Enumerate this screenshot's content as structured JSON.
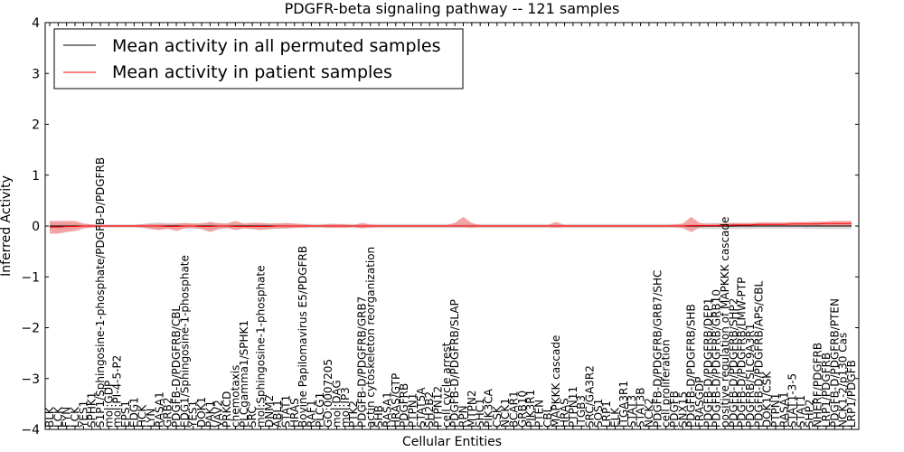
{
  "chart_data": {
    "type": "line",
    "title": "PDGFR-beta signaling pathway -- 121 samples",
    "xlabel": "Cellular Entities",
    "ylabel": "Inferred Activity",
    "ylim": [
      -4,
      4
    ],
    "yticks": [
      -4,
      -3,
      -2,
      -1,
      0,
      1,
      2,
      3,
      4
    ],
    "ytick_labels": [
      "−4",
      "−3",
      "−2",
      "−1",
      "0",
      "1",
      "2",
      "3",
      "4"
    ],
    "grid": false,
    "legend_position": "upper-left",
    "legend": [
      {
        "label": "Mean activity in all permuted samples",
        "color": "#000000"
      },
      {
        "label": "Mean activity in patient samples",
        "color": "#ff0000"
      }
    ],
    "categories": [
      "BLK",
      "LCK",
      "FYN",
      "LCK",
      "YES1",
      "SPHK1",
      "S1P1/Sphingosine-1-phosphate/PDGFB-D/PDGFRB",
      "mol:GDP",
      "mol:PI-4-5-P2",
      "EPS1",
      "EDG1",
      "HCK",
      "LYN",
      "RASA1",
      "GRB2",
      "PDGFB-D/PDGFRB/CBL",
      "EDG1/Sphingosine-1-phosphate",
      "YES1",
      "DOK1",
      "PAK1",
      "VAV2",
      "PRKCD",
      "chemotaxis",
      "PLCgamma1/SPHK1",
      "SRC",
      "mol:Sphingosine-1-phosphate",
      "DNM2",
      "ABL1",
      "STAT1",
      "HRAS",
      "Bovine Papilomavirus E5/PDGFRB",
      "RAF1",
      "PLCG1",
      "GO:0007205",
      "mol:DAG",
      "mol:IP3",
      "PTK2",
      "PDGFB-D/PDGFRB/GRB7",
      "actin cytoskeleton reorganization",
      "SHB",
      "RASA1",
      "HRAS/GTP",
      "PDGFRB",
      "PTPN1",
      "STAT5A",
      "SH2B2",
      "PTPN12",
      "cell cycle arrest",
      "PDGFB-D/PDGFRB/SLAP",
      "RPN",
      "MTPN2",
      "SHC1",
      "PIK3CA",
      "CSK",
      "NCK1",
      "BCAR1",
      "GRB10",
      "PIK3R1",
      "PTEN",
      "CBL",
      "MAPKKK cascade",
      "HRAS",
      "PTPN11",
      "ITGB3",
      "SRC/GA3R2",
      "SOS1",
      "LRP1",
      "ELK",
      "ITGA3R1",
      "STAT3",
      "STAT3B",
      "NCK2",
      "PDGFB-D/PDGFRB/GRB7/SHC",
      "cell proliferation",
      "PDGFB",
      "SNX15",
      "PDGFB-D/PDGFRB/SHB",
      "FRASGDP",
      "PDGFB-D/PDGFRB/DEP1",
      "PDGFB-D/PDGFRB/GRB10",
      "positive regulation of MAPKKK cascade",
      "PDGFB-D/PDGFRB/SHP2",
      "PDGFB-D/PDGFRB/LMW-PTP",
      "PDGFRB/SLC9A3R1",
      "PDGFB-D/PDGFRB/APS/CBL",
      "DOK1/CSK",
      "PTPN1",
      "RASA1",
      "STAT1-3-5",
      "STAT1",
      "SHP2",
      "NHERF/PDGFRB",
      "LRP1/PDGFRB",
      "PDGFB-D/PDGFRB/PTEN",
      "NCK1-2/p130 Cas",
      "LRP1/PDGFB"
    ],
    "series": [
      {
        "name": "Mean activity in all permuted samples",
        "values": [
          0.0,
          0.0,
          0.0,
          0.0,
          0.0,
          0.0,
          0.0,
          0.0,
          0.0,
          0.0,
          0.0,
          0.0,
          0.0,
          0.0,
          0.0,
          0.0,
          0.0,
          0.0,
          0.0,
          0.0,
          0.0,
          0.0,
          0.0,
          0.0,
          0.0,
          0.0,
          0.0,
          0.0,
          0.0,
          0.0,
          0.0,
          0.0,
          0.0,
          0.0,
          0.0,
          0.0,
          0.0,
          0.0,
          0.0,
          0.0,
          0.0,
          0.0,
          0.0,
          0.0,
          0.0,
          0.0,
          0.0,
          0.0,
          0.0,
          0.0,
          0.0,
          0.0,
          0.0,
          0.0,
          0.0,
          0.0,
          0.0,
          0.0,
          0.0,
          0.0,
          0.0,
          0.0,
          0.0,
          0.0,
          0.0,
          0.0,
          0.0,
          0.0,
          0.0,
          0.0,
          0.0,
          0.0,
          0.0,
          0.0,
          0.0,
          0.0,
          0.0,
          0.0,
          0.0,
          0.0,
          0.0,
          0.0,
          0.0,
          0.0,
          0.0,
          0.0,
          0.0,
          0.0,
          0.0,
          0.0,
          0.0,
          0.0,
          0.0,
          0.0,
          0.0,
          0.0
        ],
        "lower": [
          -0.06,
          -0.06,
          -0.06,
          -0.05,
          -0.04,
          -0.03,
          -0.03,
          -0.03,
          -0.03,
          -0.03,
          -0.03,
          -0.04,
          -0.06,
          -0.07,
          -0.06,
          -0.05,
          -0.05,
          -0.05,
          -0.06,
          -0.07,
          -0.06,
          -0.05,
          -0.05,
          -0.05,
          -0.06,
          -0.05,
          -0.05,
          -0.05,
          -0.05,
          -0.04,
          -0.04,
          -0.04,
          -0.04,
          -0.04,
          -0.04,
          -0.04,
          -0.04,
          -0.04,
          -0.04,
          -0.04,
          -0.04,
          -0.04,
          -0.04,
          -0.04,
          -0.04,
          -0.04,
          -0.04,
          -0.04,
          -0.04,
          -0.04,
          -0.04,
          -0.04,
          -0.04,
          -0.04,
          -0.04,
          -0.04,
          -0.04,
          -0.04,
          -0.04,
          -0.04,
          -0.04,
          -0.04,
          -0.04,
          -0.04,
          -0.04,
          -0.04,
          -0.04,
          -0.04,
          -0.04,
          -0.04,
          -0.04,
          -0.04,
          -0.04,
          -0.04,
          -0.04,
          -0.04,
          -0.04,
          -0.05,
          -0.06,
          -0.06,
          -0.06,
          -0.06,
          -0.06,
          -0.06,
          -0.05,
          -0.05,
          -0.05,
          -0.05,
          -0.05,
          -0.05,
          -0.06,
          -0.06,
          -0.06,
          -0.06,
          -0.06,
          -0.06
        ],
        "upper": [
          0.06,
          0.06,
          0.06,
          0.05,
          0.04,
          0.03,
          0.03,
          0.03,
          0.03,
          0.03,
          0.03,
          0.04,
          0.06,
          0.07,
          0.06,
          0.05,
          0.05,
          0.05,
          0.06,
          0.07,
          0.06,
          0.05,
          0.05,
          0.05,
          0.06,
          0.05,
          0.05,
          0.05,
          0.05,
          0.04,
          0.04,
          0.04,
          0.04,
          0.04,
          0.04,
          0.04,
          0.04,
          0.04,
          0.04,
          0.04,
          0.04,
          0.04,
          0.04,
          0.04,
          0.04,
          0.04,
          0.04,
          0.04,
          0.04,
          0.04,
          0.04,
          0.04,
          0.04,
          0.04,
          0.04,
          0.04,
          0.04,
          0.04,
          0.04,
          0.04,
          0.04,
          0.04,
          0.04,
          0.04,
          0.04,
          0.04,
          0.04,
          0.04,
          0.04,
          0.04,
          0.04,
          0.04,
          0.04,
          0.04,
          0.04,
          0.04,
          0.04,
          0.05,
          0.06,
          0.06,
          0.06,
          0.06,
          0.06,
          0.06,
          0.05,
          0.05,
          0.05,
          0.05,
          0.05,
          0.05,
          0.06,
          0.06,
          0.06,
          0.06,
          0.06,
          0.06
        ],
        "color": "#000000",
        "band_color": "#cccccc"
      },
      {
        "name": "Mean activity in patient samples",
        "values": [
          -0.02,
          -0.02,
          -0.01,
          -0.01,
          0.0,
          0.0,
          0.0,
          0.0,
          0.0,
          0.0,
          0.0,
          0.0,
          0.0,
          0.0,
          -0.01,
          -0.01,
          0.0,
          0.0,
          -0.01,
          -0.01,
          0.0,
          0.0,
          -0.01,
          -0.01,
          -0.01,
          -0.01,
          -0.01,
          0.0,
          0.0,
          0.0,
          0.0,
          0.0,
          0.0,
          0.0,
          0.0,
          0.0,
          0.0,
          0.0,
          0.0,
          0.0,
          0.0,
          0.0,
          0.0,
          0.0,
          0.0,
          0.0,
          0.0,
          0.0,
          0.0,
          0.0,
          0.0,
          0.0,
          0.0,
          0.0,
          0.0,
          0.0,
          0.0,
          0.0,
          0.0,
          0.0,
          0.0,
          0.0,
          0.0,
          0.0,
          0.0,
          0.0,
          0.0,
          0.0,
          0.0,
          0.0,
          0.0,
          0.0,
          0.0,
          0.0,
          0.0,
          0.0,
          0.01,
          0.01,
          0.01,
          0.01,
          0.01,
          0.02,
          0.02,
          0.02,
          0.03,
          0.03,
          0.03,
          0.03,
          0.04,
          0.04,
          0.04,
          0.04,
          0.05,
          0.05,
          0.05,
          0.05
        ],
        "lower": [
          -0.15,
          -0.15,
          -0.12,
          -0.1,
          -0.05,
          -0.03,
          -0.02,
          -0.02,
          -0.02,
          -0.02,
          -0.02,
          -0.03,
          -0.06,
          -0.08,
          -0.05,
          -0.1,
          -0.05,
          -0.04,
          -0.06,
          -0.12,
          -0.06,
          -0.04,
          -0.08,
          -0.05,
          -0.06,
          -0.08,
          -0.06,
          -0.05,
          -0.05,
          -0.04,
          -0.03,
          -0.02,
          -0.02,
          -0.03,
          -0.03,
          -0.03,
          -0.02,
          -0.05,
          -0.03,
          -0.02,
          -0.02,
          -0.02,
          -0.02,
          -0.02,
          -0.02,
          -0.02,
          -0.02,
          -0.02,
          -0.02,
          -0.02,
          -0.03,
          -0.02,
          -0.02,
          -0.02,
          -0.02,
          -0.02,
          -0.02,
          -0.02,
          -0.02,
          -0.02,
          -0.03,
          -0.02,
          -0.02,
          -0.02,
          -0.02,
          -0.02,
          -0.02,
          -0.02,
          -0.02,
          -0.02,
          -0.02,
          -0.02,
          -0.02,
          -0.02,
          -0.02,
          -0.04,
          -0.12,
          -0.03,
          -0.02,
          -0.02,
          -0.02,
          -0.02,
          -0.01,
          -0.01,
          -0.01,
          -0.01,
          -0.01,
          -0.01,
          0.0,
          0.0,
          0.0,
          0.0,
          0.0,
          0.01,
          0.01,
          0.01
        ],
        "upper": [
          0.1,
          0.1,
          0.1,
          0.1,
          0.05,
          0.03,
          0.02,
          0.02,
          0.02,
          0.02,
          0.02,
          0.03,
          0.04,
          0.04,
          0.04,
          0.05,
          0.06,
          0.05,
          0.05,
          0.08,
          0.05,
          0.05,
          0.1,
          0.05,
          0.06,
          0.06,
          0.05,
          0.05,
          0.06,
          0.05,
          0.04,
          0.02,
          0.02,
          0.04,
          0.04,
          0.03,
          0.02,
          0.06,
          0.03,
          0.02,
          0.02,
          0.02,
          0.02,
          0.02,
          0.02,
          0.02,
          0.02,
          0.02,
          0.06,
          0.18,
          0.06,
          0.02,
          0.02,
          0.02,
          0.02,
          0.02,
          0.02,
          0.02,
          0.02,
          0.02,
          0.08,
          0.02,
          0.02,
          0.02,
          0.02,
          0.02,
          0.02,
          0.02,
          0.02,
          0.02,
          0.02,
          0.02,
          0.02,
          0.02,
          0.03,
          0.05,
          0.18,
          0.06,
          0.04,
          0.05,
          0.05,
          0.06,
          0.06,
          0.06,
          0.07,
          0.07,
          0.07,
          0.07,
          0.08,
          0.08,
          0.08,
          0.09,
          0.09,
          0.1,
          0.1,
          0.1
        ],
        "color": "#ff0000",
        "band_color": "#f08080"
      }
    ]
  }
}
